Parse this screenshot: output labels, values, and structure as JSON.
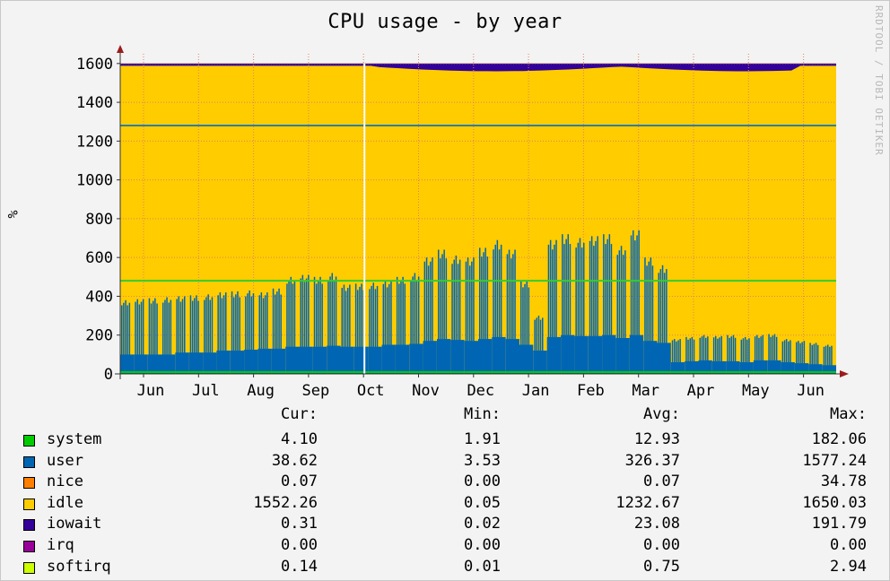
{
  "chart_data": {
    "type": "area",
    "title": "CPU usage - by year",
    "ylabel": "%",
    "vendor_label": "RRDTOOL / TOBI OETIKER",
    "ylim": [
      0,
      1650
    ],
    "yticks": [
      0,
      200,
      400,
      600,
      800,
      1000,
      1200,
      1400,
      1600
    ],
    "months": [
      "Jun",
      "Jul",
      "Aug",
      "Sep",
      "Oct",
      "Nov",
      "Dec",
      "Jan",
      "Feb",
      "Mar",
      "Apr",
      "May",
      "Jun"
    ],
    "grid": true,
    "stack_top": 1600,
    "hlines": [
      {
        "value": 1280,
        "color": "#2f7f9f"
      },
      {
        "value": 480,
        "color": "#33cc33"
      }
    ],
    "weekly_user_peaks": [
      380,
      385,
      390,
      395,
      400,
      405,
      410,
      420,
      425,
      430,
      420,
      440,
      500,
      510,
      500,
      520,
      460,
      465,
      470,
      480,
      500,
      520,
      600,
      640,
      610,
      600,
      650,
      690,
      640,
      480,
      300,
      690,
      720,
      700,
      710,
      720,
      660,
      740,
      600,
      560,
      180,
      190,
      200,
      195,
      200,
      190,
      200,
      205,
      180,
      170,
      160,
      150
    ],
    "weekly_user_base": [
      100,
      100,
      100,
      100,
      110,
      110,
      110,
      120,
      120,
      125,
      130,
      130,
      140,
      140,
      140,
      145,
      140,
      140,
      140,
      150,
      150,
      155,
      170,
      180,
      175,
      170,
      180,
      190,
      180,
      150,
      120,
      190,
      200,
      195,
      195,
      200,
      185,
      200,
      170,
      160,
      60,
      65,
      70,
      65,
      65,
      60,
      70,
      70,
      60,
      55,
      50,
      45
    ],
    "iowait_band_top": 1600,
    "iowait_band_bottom_max": 1560,
    "now_marker_month": "Oct",
    "colors": {
      "system": "#00cc00",
      "user": "#0066b3",
      "nice": "#ff8000",
      "idle": "#ffcc00",
      "iowait": "#330099",
      "irq": "#990099",
      "softirq": "#ccff00",
      "grid": "#e08060",
      "axis": "#333333",
      "arrow": "#9b1c1c"
    }
  },
  "legend": {
    "headers": {
      "cur": "Cur:",
      "min": "Min:",
      "avg": "Avg:",
      "max": "Max:"
    },
    "rows": [
      {
        "name": "system",
        "color": "#00cc00",
        "cur": "4.10",
        "min": "1.91",
        "avg": "12.93",
        "max": "182.06"
      },
      {
        "name": "user",
        "color": "#0066b3",
        "cur": "38.62",
        "min": "3.53",
        "avg": "326.37",
        "max": "1577.24"
      },
      {
        "name": "nice",
        "color": "#ff8000",
        "cur": "0.07",
        "min": "0.00",
        "avg": "0.07",
        "max": "34.78"
      },
      {
        "name": "idle",
        "color": "#ffcc00",
        "cur": "1552.26",
        "min": "0.05",
        "avg": "1232.67",
        "max": "1650.03"
      },
      {
        "name": "iowait",
        "color": "#330099",
        "cur": "0.31",
        "min": "0.02",
        "avg": "23.08",
        "max": "191.79"
      },
      {
        "name": "irq",
        "color": "#990099",
        "cur": "0.00",
        "min": "0.00",
        "avg": "0.00",
        "max": "0.00"
      },
      {
        "name": "softirq",
        "color": "#ccff00",
        "cur": "0.14",
        "min": "0.01",
        "avg": "0.75",
        "max": "2.94"
      }
    ]
  }
}
